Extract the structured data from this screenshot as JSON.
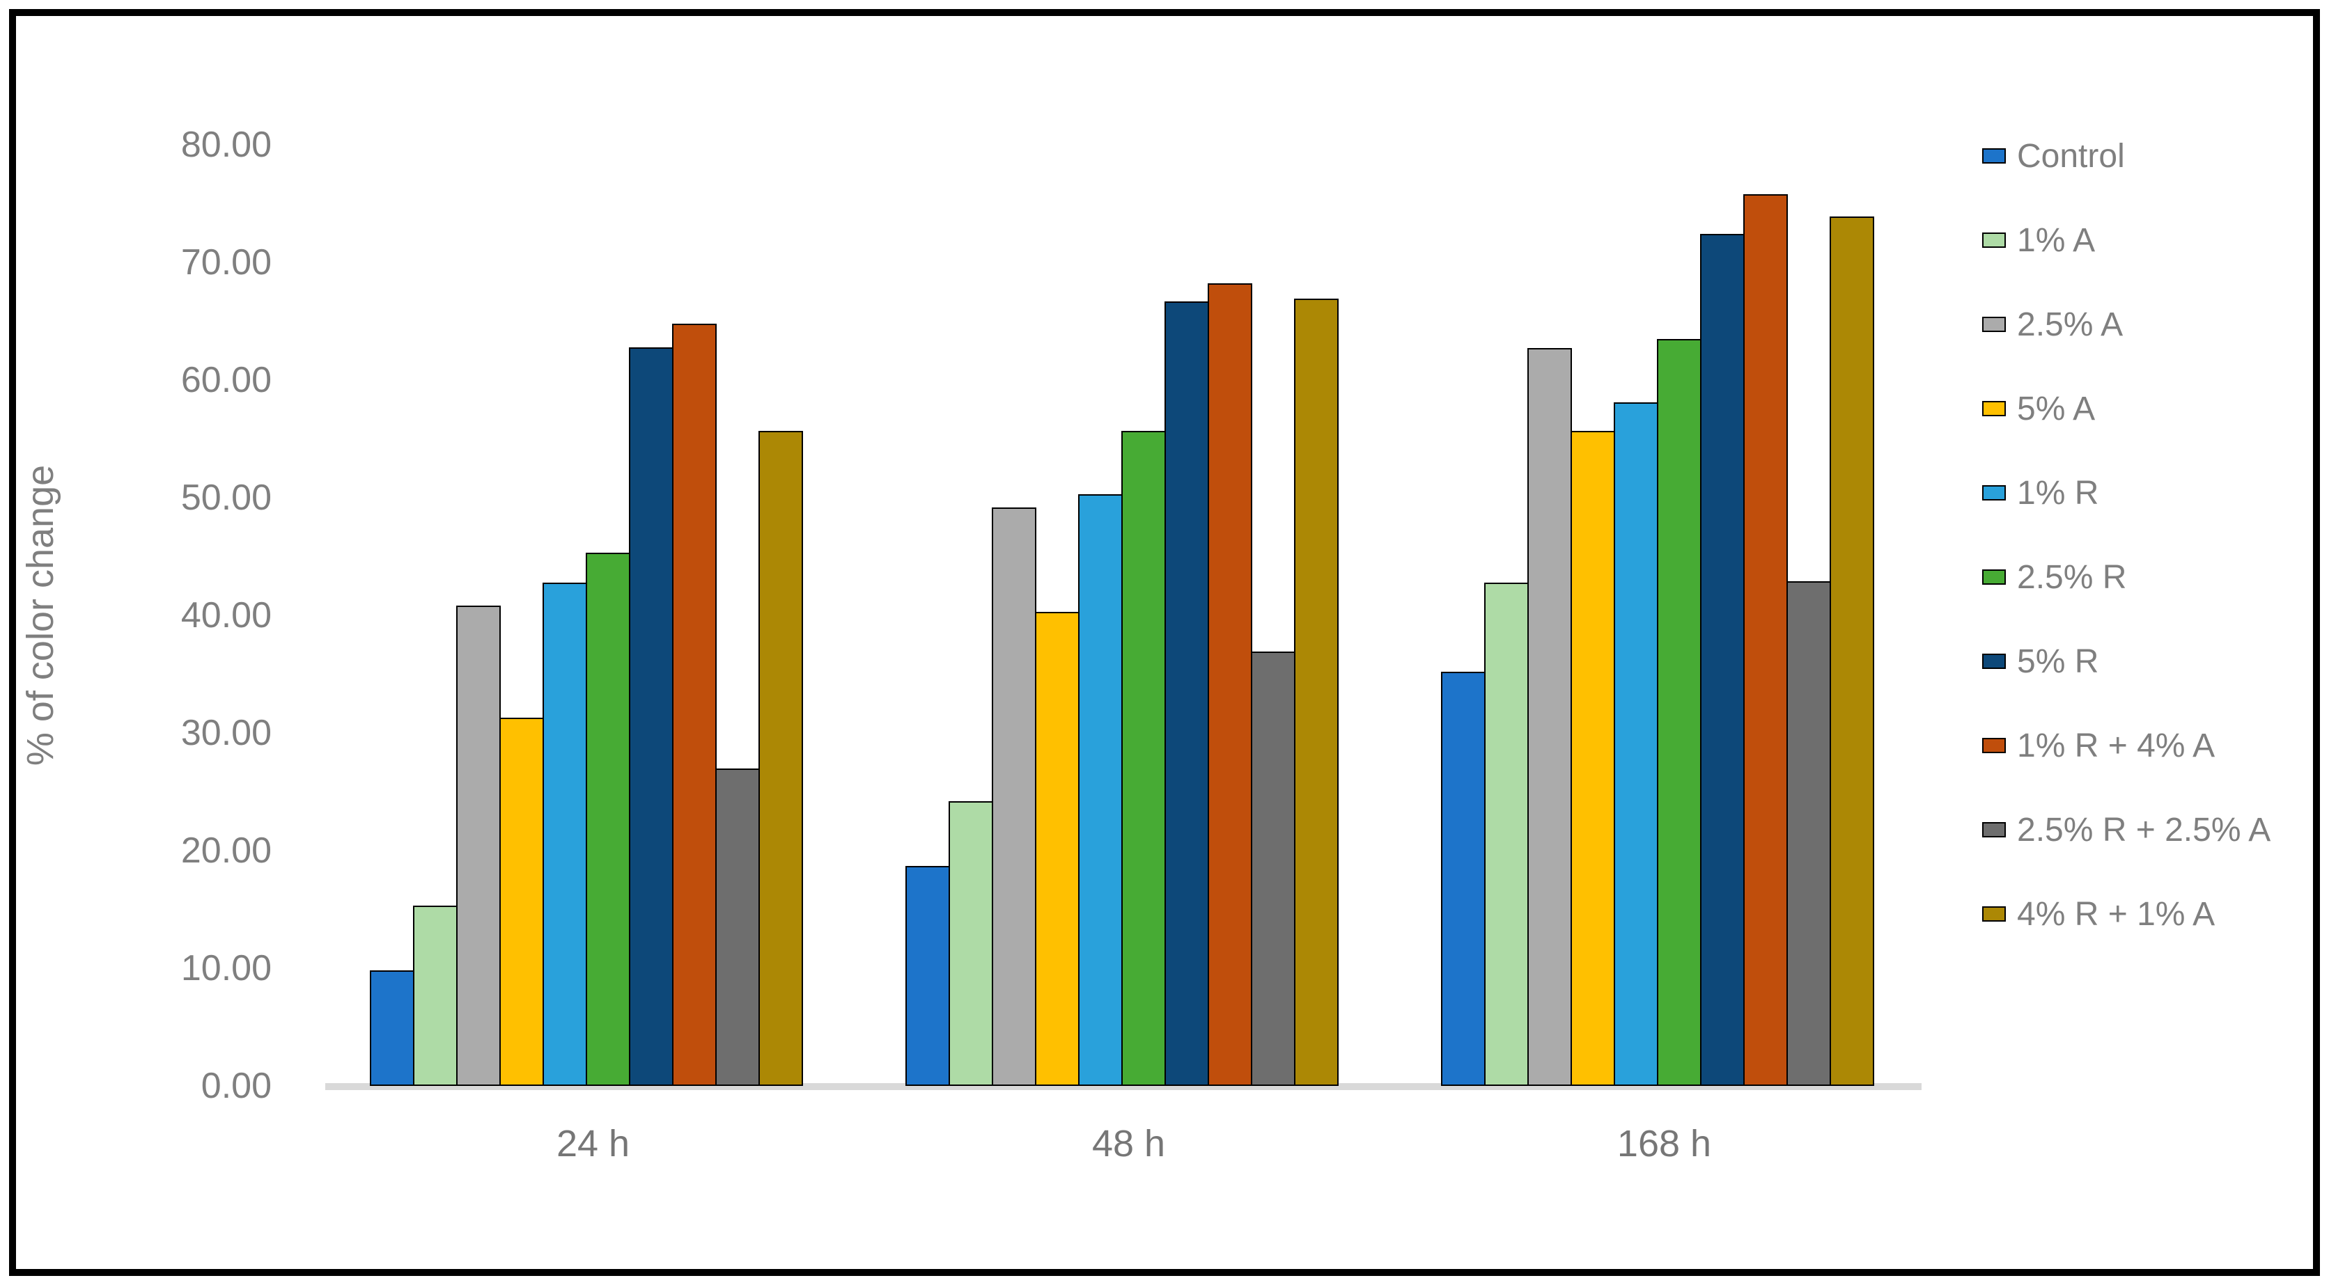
{
  "figure": {
    "background_color": "#ffffff",
    "border_color": "#000000",
    "axis_line_color": "#d9d9d9",
    "bar_outline_color": "#000000",
    "text_color": "#7f7f7f"
  },
  "chart_data": {
    "type": "bar",
    "title": "",
    "xlabel": "",
    "ylabel": "% of color change",
    "ylim": [
      0,
      80
    ],
    "ytick_step": 10,
    "ytick_labels": [
      "0.00",
      "10.00",
      "20.00",
      "30.00",
      "40.00",
      "50.00",
      "60.00",
      "70.00",
      "80.00"
    ],
    "grid": false,
    "legend_position": "right",
    "categories": [
      "24 h",
      "48 h",
      "168 h"
    ],
    "series": [
      {
        "name": "Control",
        "color": "#1d74ca",
        "values": [
          9.8,
          18.7,
          35.2
        ]
      },
      {
        "name": "1% A",
        "color": "#aedba6",
        "values": [
          15.3,
          24.2,
          42.8
        ]
      },
      {
        "name": "2.5% A",
        "color": "#ababab",
        "values": [
          40.8,
          49.2,
          62.7
        ]
      },
      {
        "name": "5% A",
        "color": "#ffc000",
        "values": [
          31.3,
          40.3,
          55.7
        ]
      },
      {
        "name": "1% R",
        "color": "#29a1db",
        "values": [
          42.8,
          50.3,
          58.1
        ]
      },
      {
        "name": "2.5% R",
        "color": "#47ab34",
        "values": [
          45.3,
          55.7,
          63.5
        ]
      },
      {
        "name": "5% R",
        "color": "#0d4879",
        "values": [
          62.8,
          66.7,
          72.4
        ]
      },
      {
        "name": "1% R + 4% A",
        "color": "#c04e0c",
        "values": [
          64.8,
          68.2,
          75.8
        ]
      },
      {
        "name": "2.5% R + 2.5% A",
        "color": "#6e6e6e",
        "values": [
          27.0,
          36.9,
          42.9
        ]
      },
      {
        "name": "4% R + 1% A",
        "color": "#ac8805",
        "values": [
          55.7,
          66.9,
          73.9
        ]
      }
    ]
  }
}
